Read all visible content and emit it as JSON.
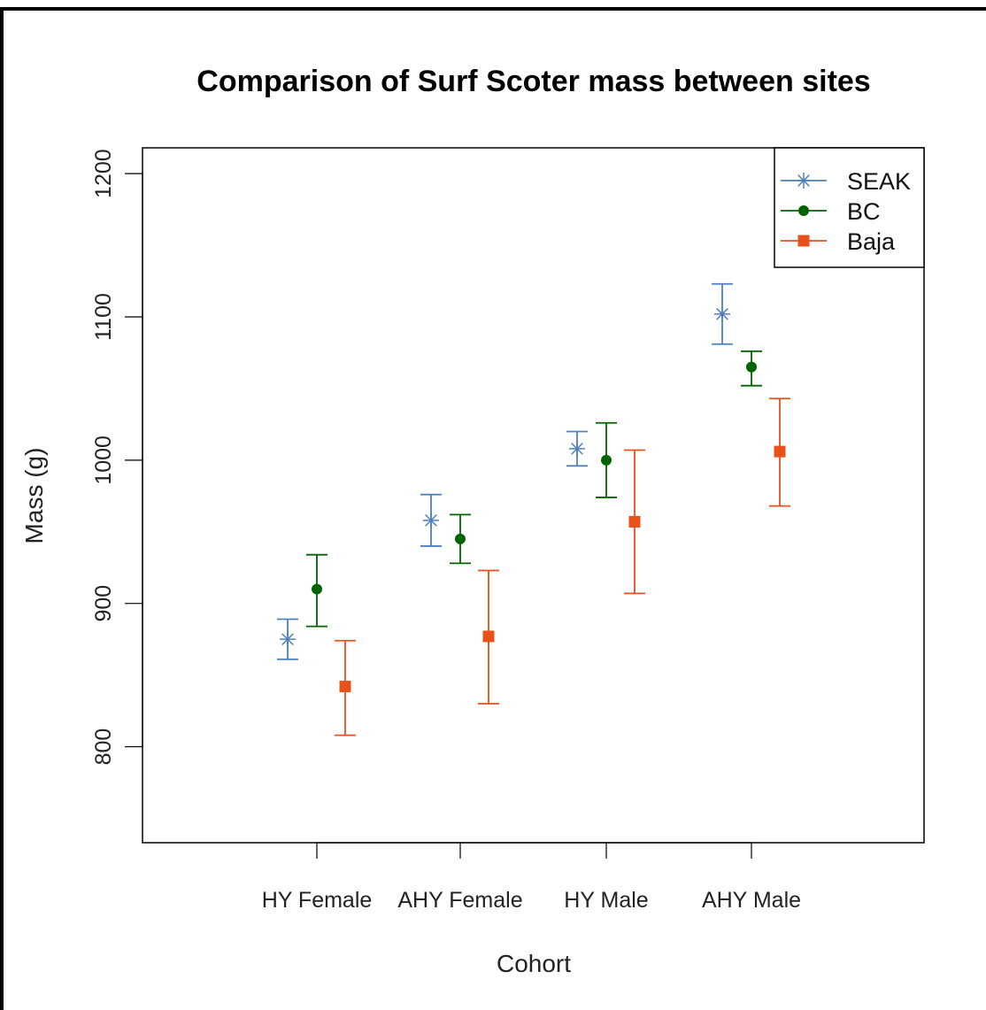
{
  "chart_data": {
    "type": "scatter",
    "title": "Comparison of Surf Scoter mass between sites",
    "xlabel": "Cohort",
    "ylabel": "Mass (g)",
    "categories": [
      "HY Female",
      "AHY Female",
      "HY Male",
      "AHY Male"
    ],
    "y_ticks": [
      "800",
      "900",
      "1000",
      "1100",
      "1200"
    ],
    "ylim": [
      733,
      1218
    ],
    "grid": false,
    "legend_position": "top-right",
    "series": [
      {
        "name": "SEAK",
        "color": "#4f81bd",
        "marker": "asterisk",
        "values": [
          875,
          958,
          1008,
          1102
        ],
        "lower": [
          861,
          940,
          996,
          1081
        ],
        "upper": [
          889,
          976,
          1020,
          1123
        ]
      },
      {
        "name": "BC",
        "color": "#006400",
        "marker": "filled-circle",
        "values": [
          910,
          945,
          1000,
          1065
        ],
        "lower": [
          884,
          928,
          974,
          1052
        ],
        "upper": [
          934,
          962,
          1026,
          1076
        ]
      },
      {
        "name": "Baja",
        "color": "#e8511a",
        "marker": "filled-square",
        "values": [
          842,
          877,
          957,
          1006
        ],
        "lower": [
          808,
          830,
          907,
          968
        ],
        "upper": [
          874,
          923,
          1007,
          1043
        ]
      }
    ]
  }
}
